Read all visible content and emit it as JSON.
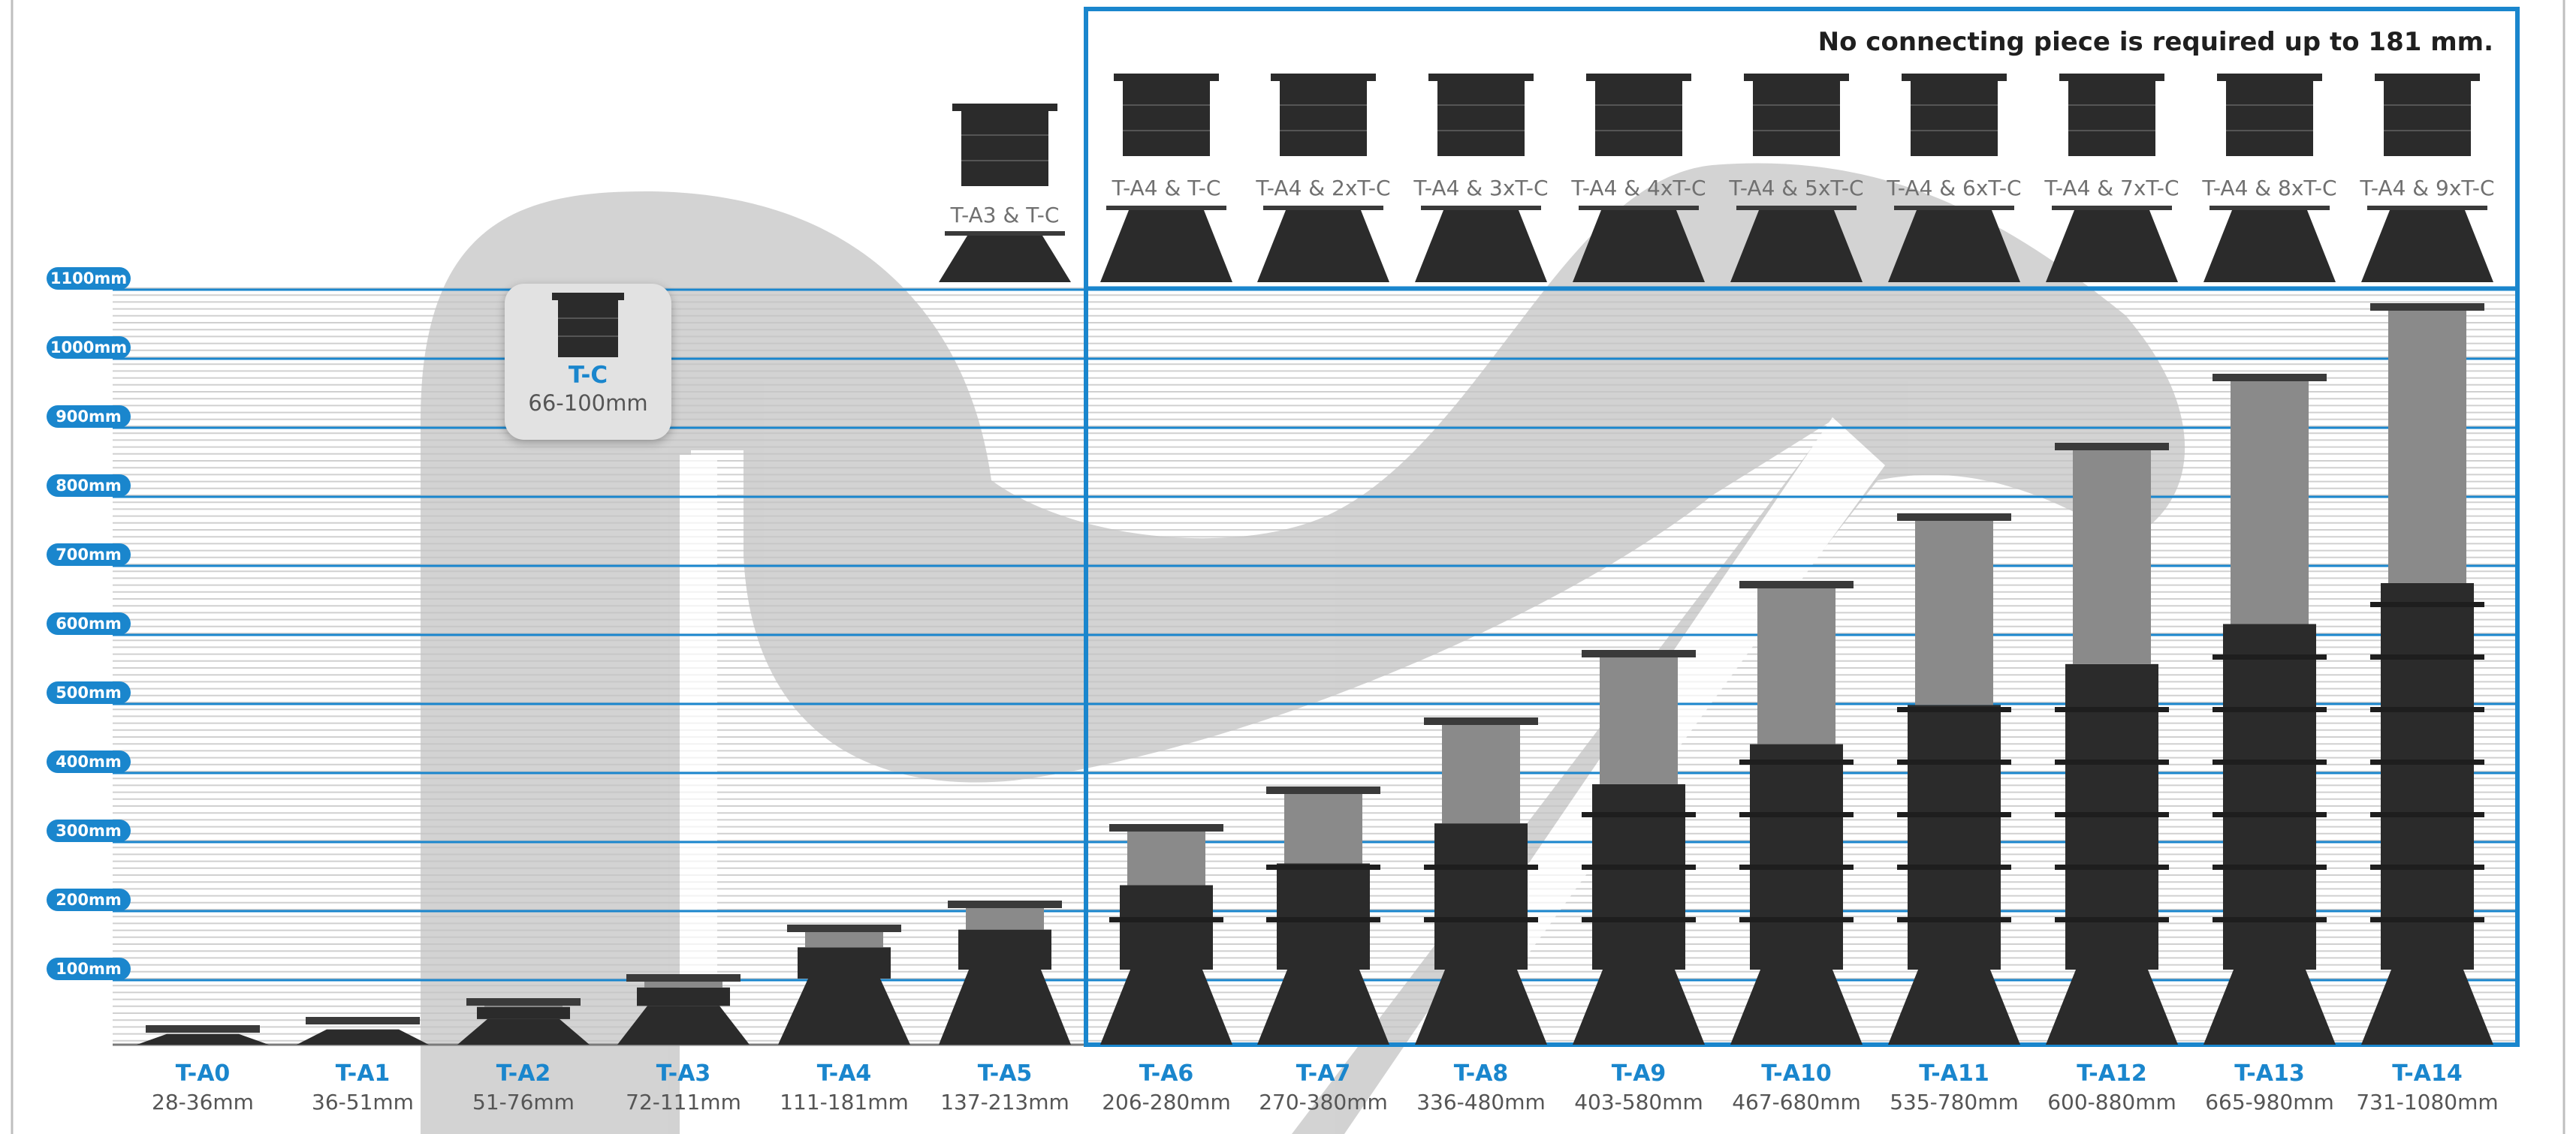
{
  "note": "No connecting piece is required up to 181 mm.",
  "scale_labels": [
    "1100mm",
    "1000mm",
    "900mm",
    "800mm",
    "700mm",
    "600mm",
    "500mm",
    "400mm",
    "300mm",
    "200mm",
    "100mm"
  ],
  "pedestals": [
    {
      "name": "T-A0",
      "range": "28-36mm"
    },
    {
      "name": "T-A1",
      "range": "36-51mm"
    },
    {
      "name": "T-A2",
      "range": "51-76mm"
    },
    {
      "name": "T-A3",
      "range": "72-111mm"
    },
    {
      "name": "T-A4",
      "range": "111-181mm"
    },
    {
      "name": "T-A5",
      "range": "137-213mm"
    },
    {
      "name": "T-A6",
      "range": "206-280mm"
    },
    {
      "name": "T-A7",
      "range": "270-380mm"
    },
    {
      "name": "T-A8",
      "range": "336-480mm"
    },
    {
      "name": "T-A9",
      "range": "403-580mm"
    },
    {
      "name": "T-A10",
      "range": "467-680mm"
    },
    {
      "name": "T-A11",
      "range": "535-780mm"
    },
    {
      "name": "T-A12",
      "range": "600-880mm"
    },
    {
      "name": "T-A13",
      "range": "665-980mm"
    },
    {
      "name": "T-A14",
      "range": "731-1080mm"
    }
  ],
  "combinations": [
    "T-A3 & T-C",
    "T-A4 & T-C",
    "T-A4 & 2xT-C",
    "T-A4 & 3xT-C",
    "T-A4 & 4xT-C",
    "T-A4 & 5xT-C",
    "T-A4 & 6xT-C",
    "T-A4 & 7xT-C",
    "T-A4 & 8xT-C",
    "T-A4 & 9xT-C"
  ],
  "connector": {
    "name": "T-C",
    "range": "66-100mm"
  },
  "colors": {
    "accent": "#1a86cd",
    "pedestal": "#2b2b2b",
    "extension": "#8a8a8a",
    "watermark": "#bdbdbd"
  }
}
